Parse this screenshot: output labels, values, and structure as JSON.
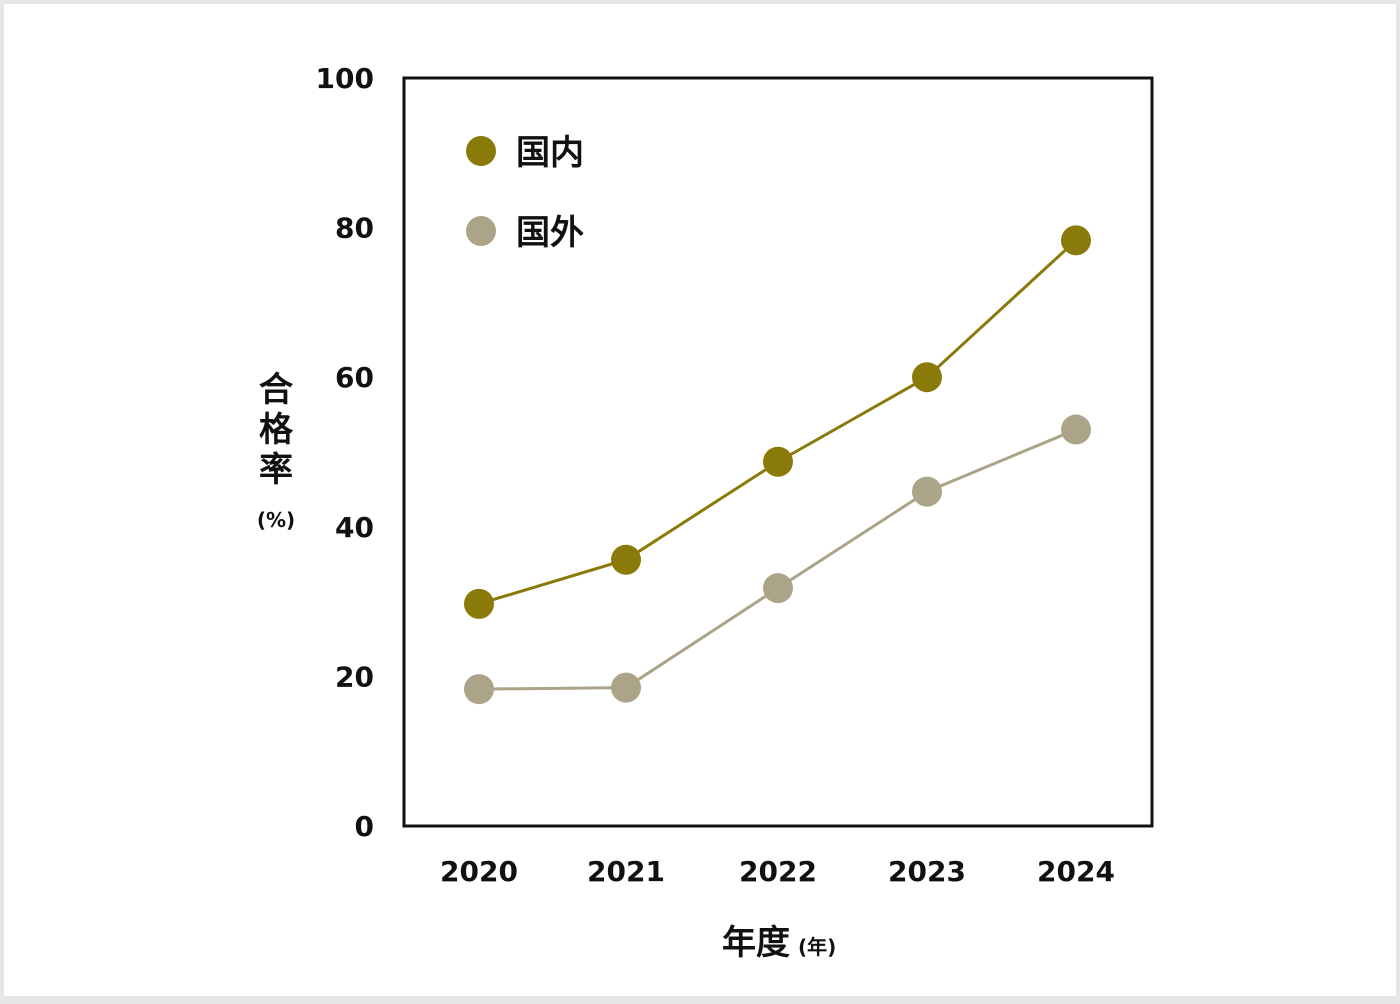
{
  "chart_data": {
    "type": "line",
    "categories": [
      "2020",
      "2021",
      "2022",
      "2023",
      "2024"
    ],
    "series": [
      {
        "name": "国内",
        "color": "#8a7a0a",
        "values": [
          29.7,
          35.6,
          48.7,
          60.0,
          78.3
        ]
      },
      {
        "name": "国外",
        "color": "#aca488",
        "values": [
          18.3,
          18.5,
          31.8,
          44.7,
          53.0
        ]
      }
    ],
    "ylim": [
      0,
      100
    ],
    "yticks": [
      "0",
      "20",
      "40",
      "60",
      "80",
      "100"
    ],
    "ylabel": "合格率",
    "ylabel_unit": "(%)",
    "xlabel": "年度",
    "xlabel_unit": "(年)",
    "grid": false,
    "legend_position": "top-left"
  }
}
